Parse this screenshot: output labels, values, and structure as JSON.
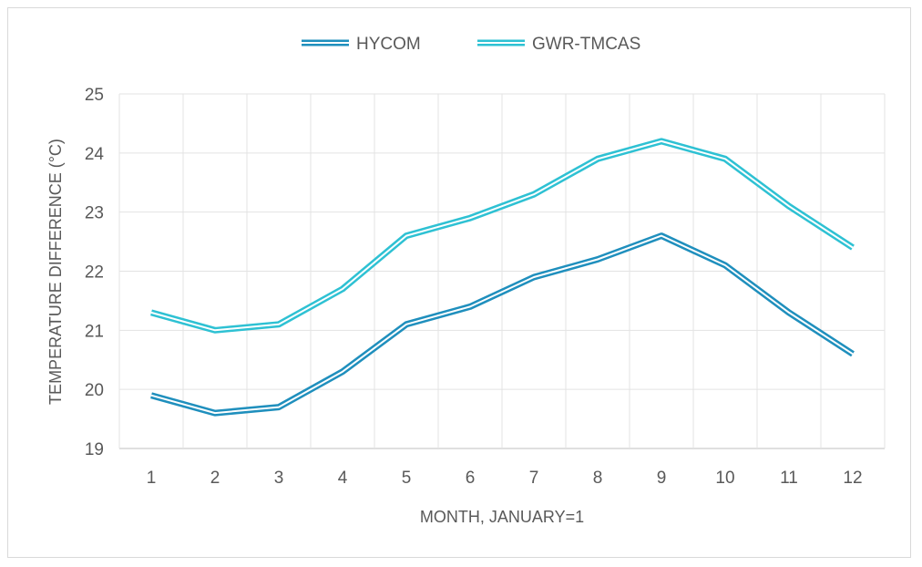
{
  "chart_data": {
    "type": "line",
    "title": "",
    "xlabel": "MONTH, JANUARY=1",
    "ylabel": "TEMPERATURE DIFFERENCE (°C)",
    "categories": [
      "1",
      "2",
      "3",
      "4",
      "5",
      "6",
      "7",
      "8",
      "9",
      "10",
      "11",
      "12"
    ],
    "ylim": [
      19,
      25
    ],
    "yticks": [
      19,
      20,
      21,
      22,
      23,
      24,
      25
    ],
    "grid": true,
    "legend_position": "top-center",
    "series": [
      {
        "name": "HYCOM",
        "color": "#1f8fbd",
        "values": [
          19.9,
          19.6,
          19.7,
          20.3,
          21.1,
          21.4,
          21.9,
          22.2,
          22.6,
          22.1,
          21.3,
          20.6
        ]
      },
      {
        "name": "GWR-TMCAS",
        "color": "#2ec1d3",
        "values": [
          21.3,
          21.0,
          21.1,
          21.7,
          22.6,
          22.9,
          23.3,
          23.9,
          24.2,
          23.9,
          23.1,
          22.4
        ]
      }
    ]
  }
}
